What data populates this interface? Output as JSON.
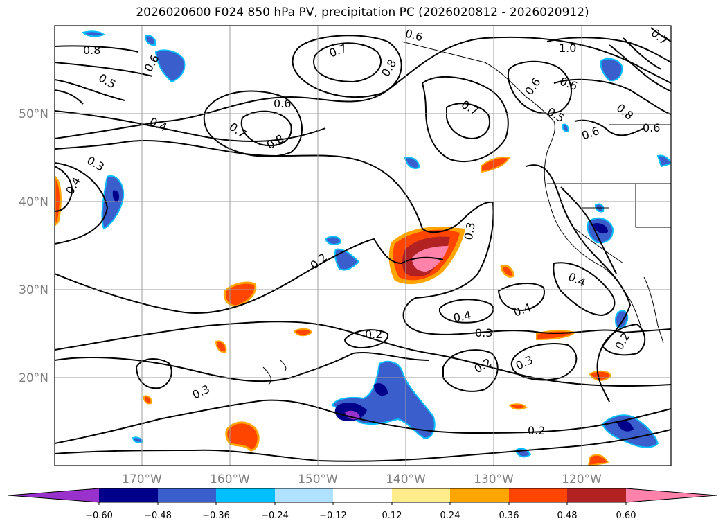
{
  "title": "2026020600 F024 850 hPa PV, precipitation PC (2026020812 - 2026020912)",
  "map": {
    "lat_labels": [
      "50°N",
      "40°N",
      "30°N",
      "20°N"
    ],
    "lon_labels": [
      "170°W",
      "160°W",
      "150°W",
      "140°W",
      "130°W",
      "120°W"
    ]
  },
  "contour_labels": [
    "0.8",
    "0.6",
    "0.5",
    "0.7",
    "0.8",
    "0.6",
    "0.4",
    "0.7",
    "0.8",
    "0.6",
    "0.7",
    "0.6",
    "0.6",
    "1.0",
    "0.6",
    "0.5",
    "0.6",
    "0.8",
    "0.7",
    "0.3",
    "0.4",
    "0.2",
    "0.3",
    "0.4",
    "0.4",
    "0.4",
    "0.3",
    "0.2",
    "0.2",
    "0.3",
    "0.3",
    "0.2",
    "0.2"
  ],
  "colorbar": {
    "ticks": [
      "−0.60",
      "−0.48",
      "−0.36",
      "−0.24",
      "−0.12",
      "0.12",
      "0.24",
      "0.36",
      "0.48",
      "0.60"
    ],
    "colors": [
      "#9932cc",
      "#00008b",
      "#3a5fcd",
      "#00bfff",
      "#b0e2ff",
      "#ffffff",
      "#ffec8b",
      "#ffa500",
      "#ff4500",
      "#b22222",
      "#ff82ab"
    ]
  }
}
